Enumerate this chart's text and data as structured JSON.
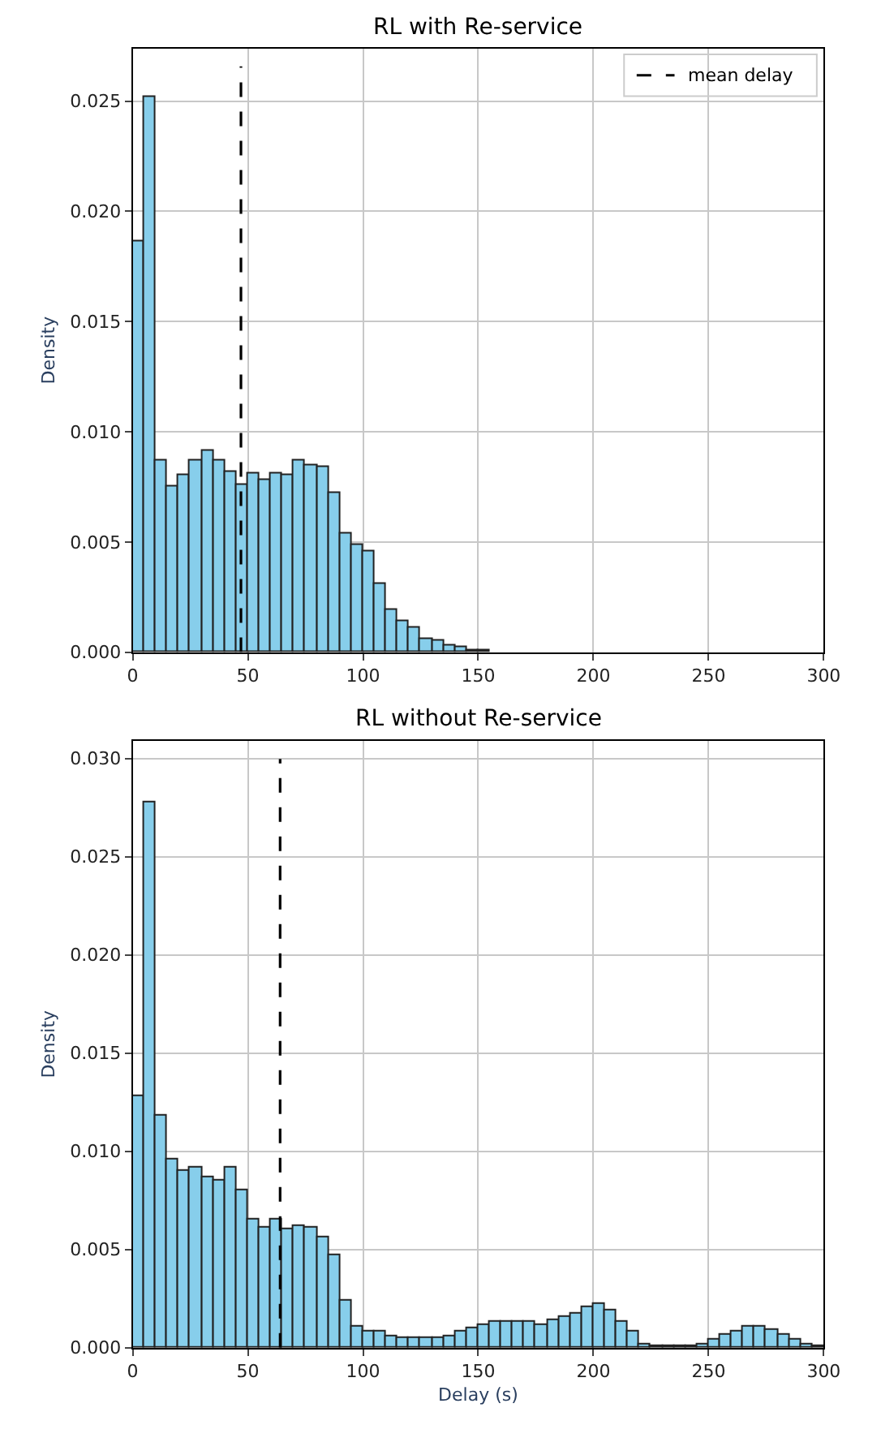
{
  "chart_data": [
    {
      "type": "histogram",
      "title": "RL with Re-service",
      "ylabel": "Density",
      "color": "#87ceeb",
      "bins": [
        0,
        5,
        10,
        15,
        20,
        25,
        30,
        35,
        40,
        45,
        50,
        55,
        60,
        65,
        70,
        75,
        80,
        85,
        90,
        95,
        100,
        105,
        110,
        115,
        120,
        125,
        130,
        135,
        140,
        145,
        150,
        155
      ],
      "values": [
        0.0186,
        0.0252,
        0.0087,
        0.0075,
        0.008,
        0.0087,
        0.0091,
        0.0087,
        0.0082,
        0.0076,
        0.0081,
        0.0078,
        0.0081,
        0.008,
        0.0087,
        0.0085,
        0.0084,
        0.0072,
        0.0054,
        0.0049,
        0.0046,
        0.0031,
        0.0019,
        0.0014,
        0.0011,
        0.0006,
        0.0005,
        0.0003,
        0.0002,
        0.0001,
        0.0001
      ],
      "xlim": [
        0,
        300
      ],
      "xticks": [
        0,
        50,
        100,
        150,
        200,
        250,
        300
      ],
      "ylim": [
        0,
        0.0274
      ],
      "yticks": [
        {
          "value": 0,
          "label": "0.000"
        },
        {
          "value": 0.005,
          "label": "0.005"
        },
        {
          "value": 0.01,
          "label": "0.010"
        },
        {
          "value": 0.015,
          "label": "0.015"
        },
        {
          "value": 0.02,
          "label": "0.020"
        },
        {
          "value": 0.025,
          "label": "0.025"
        }
      ],
      "ref_lines": [
        {
          "axis": "x",
          "value": 47,
          "label": "mean delay",
          "color": "#000000",
          "line_style": "dashed"
        }
      ],
      "grid": true,
      "legend": "top right"
    },
    {
      "type": "histogram",
      "title": "RL without Re-service",
      "xlabel": "Delay (s)",
      "ylabel": "Density",
      "color": "#87ceeb",
      "bins": [
        0,
        5,
        10,
        15,
        20,
        25,
        30,
        35,
        40,
        45,
        50,
        55,
        60,
        65,
        70,
        75,
        80,
        85,
        90,
        95,
        100,
        105,
        110,
        115,
        120,
        125,
        130,
        135,
        140,
        145,
        150,
        155,
        160,
        165,
        170,
        175,
        180,
        185,
        190,
        195,
        200,
        205,
        210,
        215,
        220,
        225,
        230,
        235,
        240,
        245,
        250,
        255,
        260,
        265,
        270,
        275,
        280,
        285,
        290,
        295,
        300
      ],
      "values": [
        0.0128,
        0.0278,
        0.0118,
        0.0096,
        0.009,
        0.0092,
        0.0087,
        0.0085,
        0.0092,
        0.008,
        0.0065,
        0.0061,
        0.0065,
        0.006,
        0.0062,
        0.0061,
        0.0056,
        0.0047,
        0.0024,
        0.0011,
        0.0008,
        0.0008,
        0.0006,
        0.0005,
        0.0005,
        0.0005,
        0.0005,
        0.0006,
        0.0008,
        0.001,
        0.0012,
        0.0013,
        0.0013,
        0.0013,
        0.0013,
        0.0012,
        0.0014,
        0.0016,
        0.0017,
        0.0021,
        0.0022,
        0.0019,
        0.0013,
        0.0008,
        0.0002,
        0.0001,
        0.0001,
        0.0001,
        0.0001,
        0.0002,
        0.0004,
        0.0007,
        0.0008,
        0.0011,
        0.0011,
        0.0009,
        0.0007,
        0.0004,
        0.0002,
        0.0001
      ],
      "xlim": [
        0,
        300
      ],
      "xticks": [
        0,
        50,
        100,
        150,
        200,
        250,
        300
      ],
      "ylim": [
        0,
        0.0309
      ],
      "yticks": [
        {
          "value": 0,
          "label": "0.000"
        },
        {
          "value": 0.005,
          "label": "0.005"
        },
        {
          "value": 0.01,
          "label": "0.010"
        },
        {
          "value": 0.015,
          "label": "0.015"
        },
        {
          "value": 0.02,
          "label": "0.020"
        },
        {
          "value": 0.025,
          "label": "0.025"
        },
        {
          "value": 0.03,
          "label": "0.030"
        }
      ],
      "ref_lines": [
        {
          "axis": "x",
          "value": 64,
          "color": "#000000",
          "line_style": "dashed"
        }
      ],
      "grid": true
    }
  ]
}
